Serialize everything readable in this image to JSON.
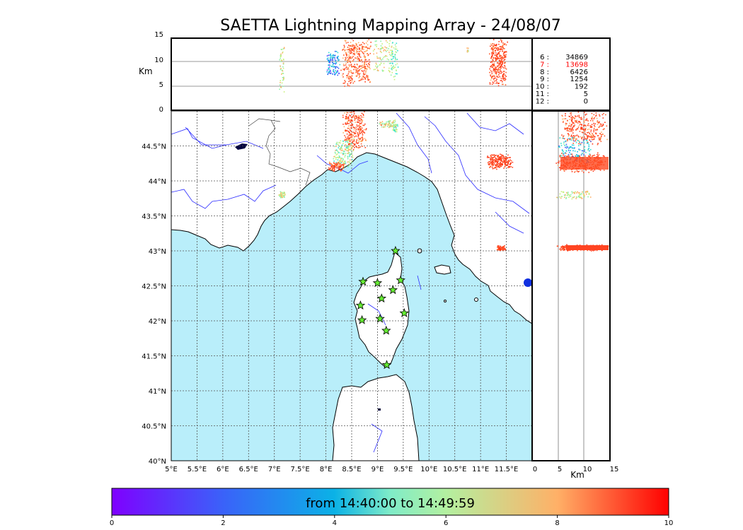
{
  "title": "SAETTA Lightning Mapping Array - 24/08/07",
  "colors": {
    "sea": "#b9eefa",
    "coast": "#000000",
    "rivers": "#2a2aff",
    "borders": "#444444",
    "stations": "#66ee33"
  },
  "alt_axis": {
    "label": "Km",
    "ticks": [
      "0",
      "5",
      "10",
      "15"
    ]
  },
  "lon_ticks": [
    "5°E",
    "5.5°E",
    "6°E",
    "6.5°E",
    "7°E",
    "7.5°E",
    "8°E",
    "8.5°E",
    "9°E",
    "9.5°E",
    "10°E",
    "10.5°E",
    "11°E",
    "11.5°E"
  ],
  "lat_ticks": [
    "40°N",
    "40.5°N",
    "41°N",
    "41.5°N",
    "42°N",
    "42.5°N",
    "43°N",
    "43.5°N",
    "44°N",
    "44.5°N"
  ],
  "km_x_label": "Km",
  "counts": [
    {
      "key": "6",
      "value": "34869",
      "highlight": false
    },
    {
      "key": "7",
      "value": "13698",
      "highlight": true
    },
    {
      "key": "8",
      "value": "6426",
      "highlight": false
    },
    {
      "key": "9",
      "value": "1254",
      "highlight": false
    },
    {
      "key": "10",
      "value": "192",
      "highlight": false
    },
    {
      "key": "11",
      "value": "5",
      "highlight": false
    },
    {
      "key": "12",
      "value": "0",
      "highlight": false
    }
  ],
  "colorbar": {
    "label": "from 14:40:00 to 14:49:59",
    "ticks": [
      "0",
      "2",
      "4",
      "6",
      "8",
      "10"
    ]
  },
  "stations": [
    {
      "lon": 9.35,
      "lat": 43.0
    },
    {
      "lon": 8.72,
      "lat": 42.56
    },
    {
      "lon": 9.0,
      "lat": 42.54
    },
    {
      "lon": 9.45,
      "lat": 42.58
    },
    {
      "lon": 9.3,
      "lat": 42.44
    },
    {
      "lon": 9.08,
      "lat": 42.32
    },
    {
      "lon": 8.67,
      "lat": 42.22
    },
    {
      "lon": 9.52,
      "lat": 42.11
    },
    {
      "lon": 8.7,
      "lat": 42.01
    },
    {
      "lon": 9.05,
      "lat": 42.03
    },
    {
      "lon": 9.17,
      "lat": 41.86
    },
    {
      "lon": 9.18,
      "lat": 41.37
    }
  ]
}
